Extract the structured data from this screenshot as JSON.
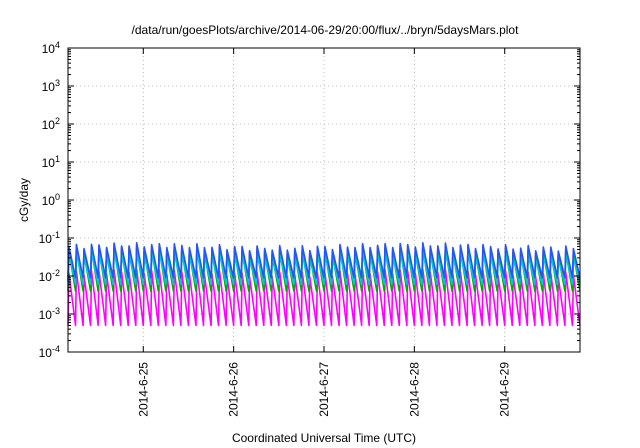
{
  "chart_data": {
    "type": "line",
    "title": "/data/run/goesPlots/archive/2014-06-29/20:00/flux/../bryn/5daysMars.plot",
    "xlabel": "Coordinated Universal Time (UTC)",
    "ylabel": "cGy/day",
    "yscale": "log",
    "ylim": [
      0.0001,
      10000
    ],
    "y_tick_labels": [
      {
        "base": "10",
        "exp": "-4"
      },
      {
        "base": "10",
        "exp": "-3"
      },
      {
        "base": "10",
        "exp": "-2"
      },
      {
        "base": "10",
        "exp": "-1"
      },
      {
        "base": "10",
        "exp": "0"
      },
      {
        "base": "10",
        "exp": "1"
      },
      {
        "base": "10",
        "exp": "2"
      },
      {
        "base": "10",
        "exp": "3"
      },
      {
        "base": "10",
        "exp": "4"
      }
    ],
    "xlim": [
      "2014-06-24 04:00",
      "2014-06-29 20:00"
    ],
    "x_tick_labels": [
      "2014-6-25",
      "2014-6-26",
      "2014-6-27",
      "2014-6-28",
      "2014-6-29"
    ],
    "grid": true,
    "legend": "none",
    "orbit_period_hours": 2,
    "series": [
      {
        "color": "#ff00ff",
        "peak": 0.012,
        "trough": 0.0005
      },
      {
        "color": "#cc0000",
        "peak": 0.055,
        "trough": 0.007
      },
      {
        "color": "#00aa00",
        "peak": 0.045,
        "trough": 0.004
      },
      {
        "color": "#00cccc",
        "peak": 0.035,
        "trough": 0.006
      },
      {
        "color": "#2255ff",
        "peak": 0.06,
        "trough": 0.009
      }
    ],
    "dips": [
      {
        "time": "2014-06-27 01:00",
        "value": 0.0005
      },
      {
        "time": "2014-06-27 03:00",
        "value": 0.0004
      },
      {
        "time": "2014-06-27 23:00",
        "value": 0.0005
      },
      {
        "time": "2014-06-28 01:00",
        "value": 0.0004
      }
    ]
  }
}
